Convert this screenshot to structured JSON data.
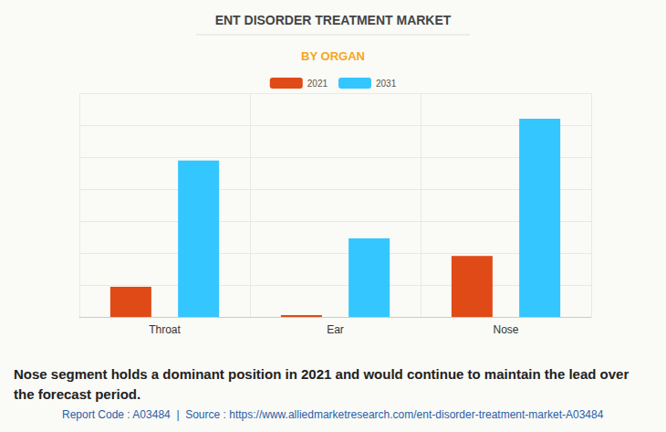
{
  "chart_data": {
    "type": "bar",
    "title": "ENT DISORDER TREATMENT MARKET",
    "subtitle": "BY ORGAN",
    "categories": [
      "Throat",
      "Ear",
      "Nose"
    ],
    "series": [
      {
        "name": "2021",
        "color": "#e04a17",
        "values": [
          0.94,
          0.06,
          1.91
        ]
      },
      {
        "name": "2031",
        "color": "#33c6ff",
        "values": [
          4.89,
          2.46,
          6.2
        ]
      }
    ],
    "ylim": [
      0,
      7
    ],
    "yticks": [
      0,
      1,
      2,
      3,
      4,
      5,
      6,
      7
    ],
    "grid": true,
    "legend": "top",
    "tick_labels": "x",
    "caption": "Nose segment holds a dominant position in 2021 and would continue to maintain the lead over the forecast period.",
    "source": "Report Code : A03484  |  Source : https://www.alliedmarketresearch.com/ent-disorder-treatment-market-A03484"
  }
}
